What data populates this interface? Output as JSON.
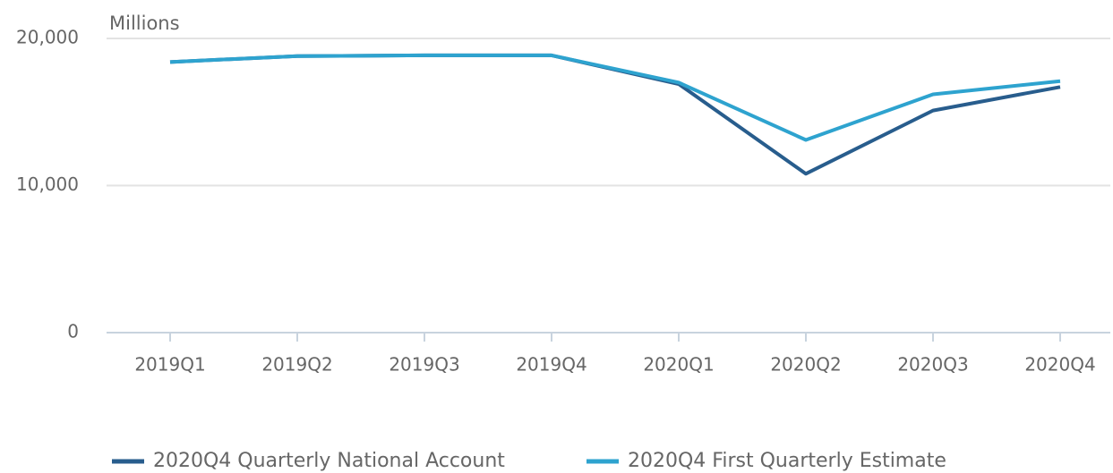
{
  "chart_data": {
    "type": "line",
    "y_axis_label": "Millions",
    "categories": [
      "2019Q1",
      "2019Q2",
      "2019Q3",
      "2019Q4",
      "2020Q1",
      "2020Q2",
      "2020Q3",
      "2020Q4"
    ],
    "series": [
      {
        "name": "2020Q4 Quarterly National Account",
        "color": "#285d8d",
        "values": [
          18400,
          18800,
          18850,
          18850,
          16900,
          10800,
          15100,
          16700
        ]
      },
      {
        "name": "2020Q4 First Quarterly Estimate",
        "color": "#2ea3cf",
        "values": [
          18400,
          18800,
          18850,
          18850,
          17000,
          13100,
          16200,
          17100
        ]
      }
    ],
    "ylim": [
      0,
      20000
    ],
    "yticks": [
      {
        "value": 0,
        "label": "0"
      },
      {
        "value": 10000,
        "label": "10,000"
      },
      {
        "value": 20000,
        "label": "20,000"
      }
    ],
    "grid": true,
    "legend": "bottom"
  }
}
